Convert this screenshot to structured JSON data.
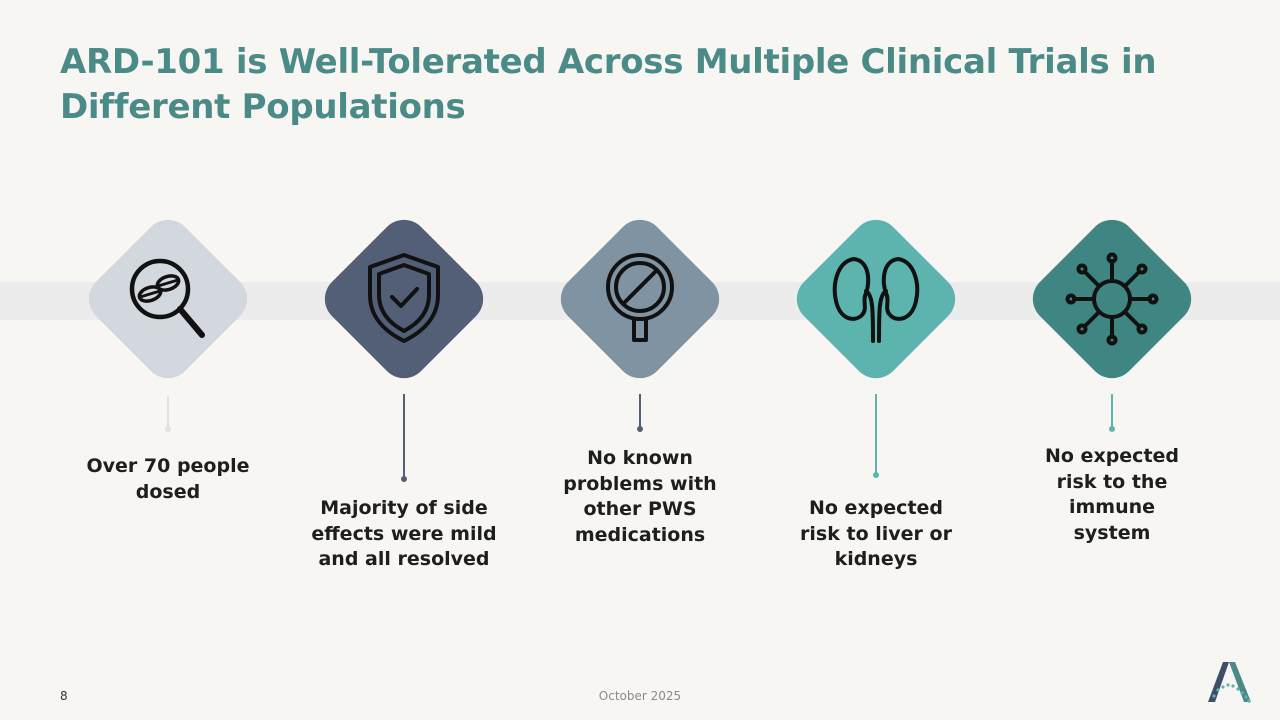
{
  "slide": {
    "title": "ARD-101 is Well-Tolerated Across Multiple Clinical Trials in Different Populations",
    "page_number": "8",
    "date": "October 2025"
  },
  "colors": {
    "title": "#4a8a87",
    "diamond_1": "#d3d8df",
    "diamond_2": "#535f76",
    "diamond_3": "#7f93a2",
    "diamond_4": "#5db3ae",
    "diamond_5": "#3f8581"
  },
  "features": [
    {
      "caption": "Over 70 people dosed",
      "icon": "magnifier-pills-icon"
    },
    {
      "caption": "Majority of side effects were mild and all resolved",
      "icon": "shield-check-icon"
    },
    {
      "caption": "No known problems with other PWS medications",
      "icon": "prohibited-sign-icon"
    },
    {
      "caption": "No expected risk to liver or kidneys",
      "icon": "kidneys-icon"
    },
    {
      "caption": "No expected risk to the immune system",
      "icon": "virus-icon"
    }
  ]
}
